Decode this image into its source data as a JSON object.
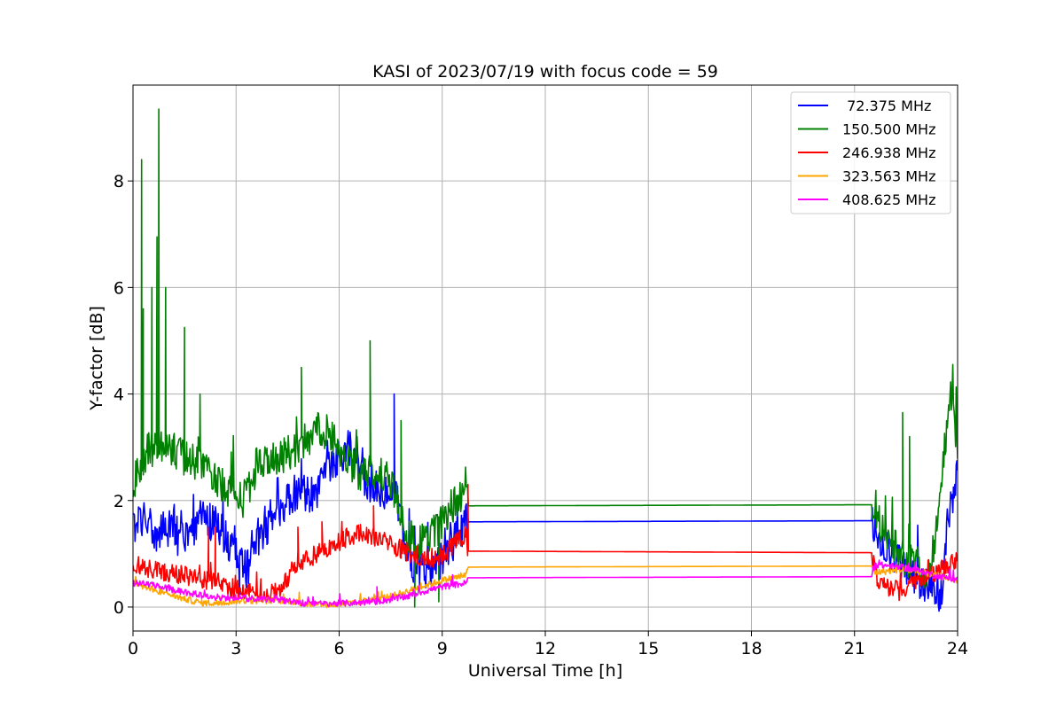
{
  "chart_data": {
    "type": "line",
    "title": "KASI of 2023/07/19 with focus code = 59",
    "xlabel": "Universal Time [h]",
    "ylabel": "Y-factor [dB]",
    "xlim": [
      0,
      24
    ],
    "ylim": [
      -0.45,
      9.8
    ],
    "xticks": [
      0,
      3,
      6,
      9,
      12,
      15,
      18,
      21,
      24
    ],
    "yticks": [
      0,
      2,
      4,
      6,
      8
    ],
    "grid": true,
    "legend_position": "top-right",
    "series": [
      {
        "name": " 72.375 MHz",
        "color": "#0000ff",
        "points": [
          [
            0,
            1.5
          ],
          [
            0.3,
            1.7
          ],
          [
            0.6,
            1.3
          ],
          [
            1.0,
            1.5
          ],
          [
            1.5,
            1.2
          ],
          [
            2.0,
            1.7
          ],
          [
            2.5,
            1.5
          ],
          [
            3.0,
            1.0
          ],
          [
            3.3,
            0.7
          ],
          [
            3.7,
            1.3
          ],
          [
            4.2,
            1.8
          ],
          [
            4.8,
            2.2
          ],
          [
            5.3,
            2.1
          ],
          [
            5.8,
            2.7
          ],
          [
            6.3,
            3.0
          ],
          [
            6.8,
            2.3
          ],
          [
            7.3,
            2.2
          ],
          [
            7.7,
            2.0
          ],
          [
            8.1,
            0.7
          ],
          [
            8.5,
            0.6
          ],
          [
            9.0,
            0.9
          ],
          [
            9.7,
            1.6
          ],
          [
            21.5,
            1.62
          ],
          [
            21.7,
            1.2
          ],
          [
            22.3,
            0.9
          ],
          [
            22.8,
            0.5
          ],
          [
            23.2,
            0.4
          ],
          [
            23.5,
            0.1
          ],
          [
            23.7,
            1.5
          ],
          [
            24,
            2.5
          ]
        ],
        "spikes": [
          [
            3.1,
            0.2
          ],
          [
            7.6,
            4.0
          ]
        ]
      },
      {
        "name": "150.500 MHz",
        "color": "#008000",
        "points": [
          [
            0,
            2.3
          ],
          [
            0.4,
            2.9
          ],
          [
            0.8,
            3.1
          ],
          [
            1.3,
            2.9
          ],
          [
            1.8,
            2.7
          ],
          [
            2.3,
            2.5
          ],
          [
            2.8,
            2.2
          ],
          [
            3.2,
            2.0
          ],
          [
            3.6,
            2.6
          ],
          [
            4.1,
            2.8
          ],
          [
            4.6,
            2.9
          ],
          [
            5.0,
            3.1
          ],
          [
            5.4,
            3.4
          ],
          [
            5.8,
            3.2
          ],
          [
            6.2,
            2.8
          ],
          [
            6.6,
            2.5
          ],
          [
            7.0,
            2.5
          ],
          [
            7.5,
            2.4
          ],
          [
            8.0,
            1.3
          ],
          [
            8.5,
            1.2
          ],
          [
            9.0,
            1.6
          ],
          [
            9.4,
            2.0
          ],
          [
            9.7,
            2.3
          ],
          [
            9.75,
            1.9
          ],
          [
            21.5,
            1.92
          ],
          [
            21.7,
            1.6
          ],
          [
            22.3,
            1.0
          ],
          [
            22.8,
            0.8
          ],
          [
            23.2,
            0.6
          ],
          [
            23.5,
            2.2
          ],
          [
            23.8,
            3.9
          ],
          [
            24,
            3.0
          ]
        ],
        "spikes": [
          [
            0.25,
            8.4
          ],
          [
            0.3,
            5.6
          ],
          [
            0.55,
            6.0
          ],
          [
            0.75,
            9.35
          ],
          [
            0.7,
            6.95
          ],
          [
            0.95,
            6.0
          ],
          [
            1.5,
            5.25
          ],
          [
            1.95,
            4.0
          ],
          [
            4.9,
            4.5
          ],
          [
            6.9,
            5.0
          ],
          [
            7.8,
            3.5
          ],
          [
            8.2,
            0.0
          ],
          [
            8.9,
            0.1
          ],
          [
            22.4,
            3.65
          ],
          [
            22.6,
            3.2
          ]
        ]
      },
      {
        "name": "246.938 MHz",
        "color": "#ff0000",
        "points": [
          [
            0,
            0.8
          ],
          [
            0.5,
            0.7
          ],
          [
            1.0,
            0.65
          ],
          [
            1.5,
            0.6
          ],
          [
            2.0,
            0.5
          ],
          [
            2.4,
            0.5
          ],
          [
            2.9,
            0.35
          ],
          [
            3.3,
            0.3
          ],
          [
            3.8,
            0.2
          ],
          [
            4.3,
            0.3
          ],
          [
            4.7,
            0.8
          ],
          [
            5.1,
            0.9
          ],
          [
            5.6,
            1.1
          ],
          [
            6.1,
            1.25
          ],
          [
            6.6,
            1.4
          ],
          [
            7.1,
            1.3
          ],
          [
            7.6,
            1.15
          ],
          [
            8.1,
            1.0
          ],
          [
            8.6,
            0.9
          ],
          [
            9.1,
            1.0
          ],
          [
            9.7,
            1.4
          ],
          [
            9.75,
            1.05
          ],
          [
            21.5,
            1.02
          ],
          [
            21.7,
            0.45
          ],
          [
            22.3,
            0.3
          ],
          [
            22.8,
            0.5
          ],
          [
            23.2,
            0.6
          ],
          [
            23.6,
            0.75
          ],
          [
            24,
            0.85
          ]
        ],
        "spikes": [
          [
            2.2,
            1.5
          ],
          [
            2.4,
            1.5
          ],
          [
            4.8,
            1.5
          ],
          [
            5.5,
            1.6
          ],
          [
            7.0,
            1.9
          ],
          [
            9.75,
            2.3
          ]
        ]
      },
      {
        "name": "323.563 MHz",
        "color": "#ffa500",
        "points": [
          [
            0,
            0.45
          ],
          [
            0.5,
            0.35
          ],
          [
            1.0,
            0.25
          ],
          [
            1.5,
            0.15
          ],
          [
            2.0,
            0.08
          ],
          [
            2.5,
            0.07
          ],
          [
            3.0,
            0.12
          ],
          [
            3.5,
            0.12
          ],
          [
            4.0,
            0.12
          ],
          [
            4.5,
            0.12
          ],
          [
            5.0,
            0.06
          ],
          [
            5.5,
            0.05
          ],
          [
            6.0,
            0.05
          ],
          [
            6.5,
            0.08
          ],
          [
            7.0,
            0.15
          ],
          [
            7.5,
            0.2
          ],
          [
            8.0,
            0.3
          ],
          [
            8.5,
            0.4
          ],
          [
            9.0,
            0.5
          ],
          [
            9.7,
            0.6
          ],
          [
            9.75,
            0.75
          ],
          [
            21.5,
            0.77
          ],
          [
            21.6,
            0.65
          ],
          [
            22.3,
            0.7
          ],
          [
            22.8,
            0.68
          ],
          [
            23.3,
            0.6
          ],
          [
            23.7,
            0.55
          ],
          [
            24,
            0.5
          ]
        ],
        "spikes": []
      },
      {
        "name": "408.625 MHz",
        "color": "#ff00ff",
        "points": [
          [
            0,
            0.45
          ],
          [
            0.5,
            0.42
          ],
          [
            1.0,
            0.35
          ],
          [
            1.5,
            0.28
          ],
          [
            2.0,
            0.22
          ],
          [
            2.5,
            0.18
          ],
          [
            3.0,
            0.17
          ],
          [
            3.5,
            0.16
          ],
          [
            4.0,
            0.15
          ],
          [
            4.5,
            0.12
          ],
          [
            5.0,
            0.07
          ],
          [
            5.5,
            0.06
          ],
          [
            6.0,
            0.07
          ],
          [
            6.5,
            0.08
          ],
          [
            7.0,
            0.1
          ],
          [
            7.5,
            0.14
          ],
          [
            8.0,
            0.2
          ],
          [
            8.5,
            0.3
          ],
          [
            9.0,
            0.38
          ],
          [
            9.7,
            0.45
          ],
          [
            9.75,
            0.55
          ],
          [
            21.5,
            0.57
          ],
          [
            21.6,
            0.8
          ],
          [
            22.3,
            0.75
          ],
          [
            22.8,
            0.7
          ],
          [
            23.3,
            0.6
          ],
          [
            23.7,
            0.55
          ],
          [
            24,
            0.5
          ]
        ],
        "spikes": [
          [
            7.1,
            0.38
          ]
        ]
      }
    ]
  }
}
